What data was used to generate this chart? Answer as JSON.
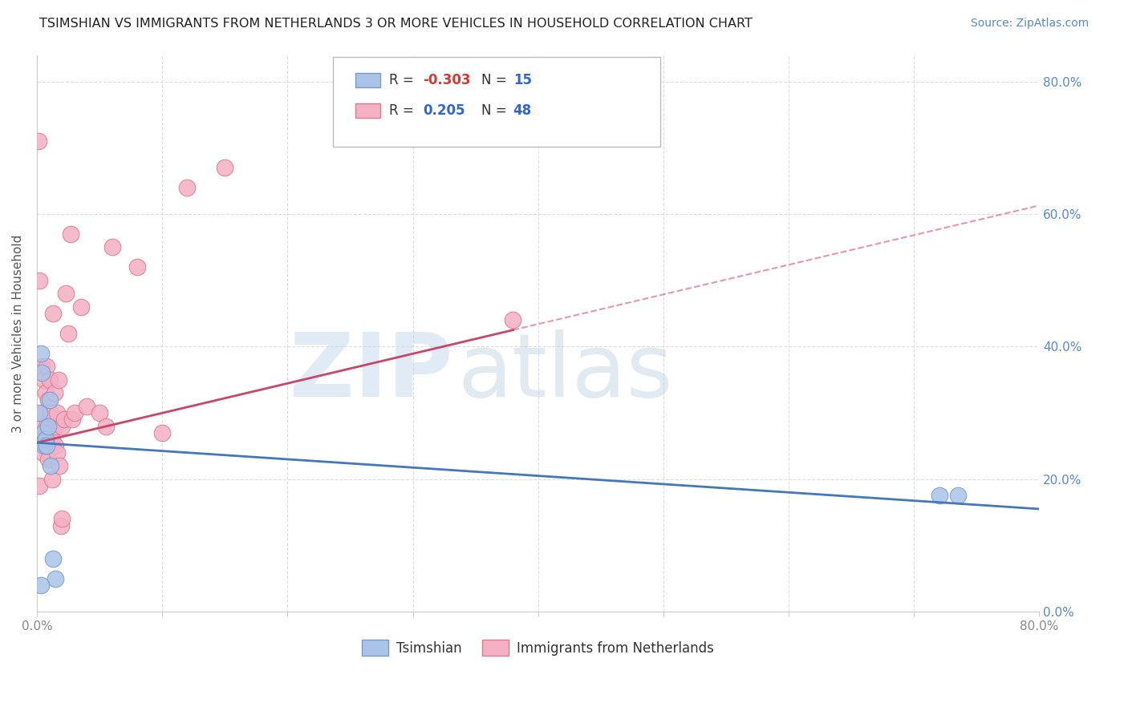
{
  "title": "TSIMSHIAN VS IMMIGRANTS FROM NETHERLANDS 3 OR MORE VEHICLES IN HOUSEHOLD CORRELATION CHART",
  "source": "Source: ZipAtlas.com",
  "ylabel": "3 or more Vehicles in Household",
  "xlim": [
    0.0,
    0.8
  ],
  "ylim": [
    0.0,
    0.84
  ],
  "xticks": [
    0.0,
    0.1,
    0.2,
    0.3,
    0.4,
    0.5,
    0.6,
    0.7,
    0.8
  ],
  "xticklabels": [
    "0.0%",
    "",
    "",
    "",
    "",
    "",
    "",
    "",
    "80.0%"
  ],
  "yticks_right": [
    0.0,
    0.2,
    0.4,
    0.6,
    0.8
  ],
  "yticklabels_right": [
    "0.0%",
    "20.0%",
    "40.0%",
    "60.0%",
    "80.0%"
  ],
  "grid_color": "#dddddd",
  "background_color": "#ffffff",
  "tsimshian_color": "#aac4e8",
  "tsimshian_edge_color": "#7799cc",
  "netherlands_color": "#f4b0c4",
  "netherlands_edge_color": "#e07890",
  "tsimshian_line_color": "#4477bb",
  "netherlands_line_color": "#cc4466",
  "tsimshian_R": -0.303,
  "tsimshian_N": 15,
  "netherlands_R": 0.205,
  "netherlands_N": 48,
  "legend_label_tsimshian": "Tsimshian",
  "legend_label_netherlands": "Immigrants from Netherlands",
  "watermark_zip": "ZIP",
  "watermark_atlas": "atlas",
  "tsimshian_x": [
    0.002,
    0.003,
    0.004,
    0.005,
    0.006,
    0.007,
    0.008,
    0.009,
    0.01,
    0.011,
    0.013,
    0.015,
    0.72,
    0.735,
    0.003
  ],
  "tsimshian_y": [
    0.3,
    0.39,
    0.36,
    0.27,
    0.25,
    0.26,
    0.25,
    0.28,
    0.32,
    0.22,
    0.08,
    0.05,
    0.175,
    0.175,
    0.04
  ],
  "netherlands_x": [
    0.001,
    0.002,
    0.002,
    0.003,
    0.004,
    0.004,
    0.005,
    0.005,
    0.006,
    0.006,
    0.007,
    0.007,
    0.008,
    0.008,
    0.009,
    0.009,
    0.01,
    0.01,
    0.011,
    0.012,
    0.012,
    0.013,
    0.014,
    0.015,
    0.015,
    0.016,
    0.016,
    0.017,
    0.018,
    0.019,
    0.02,
    0.02,
    0.022,
    0.023,
    0.025,
    0.027,
    0.028,
    0.03,
    0.035,
    0.04,
    0.05,
    0.055,
    0.06,
    0.08,
    0.1,
    0.12,
    0.15,
    0.38
  ],
  "netherlands_y": [
    0.71,
    0.19,
    0.5,
    0.26,
    0.28,
    0.37,
    0.24,
    0.3,
    0.26,
    0.35,
    0.25,
    0.33,
    0.28,
    0.37,
    0.32,
    0.23,
    0.27,
    0.35,
    0.3,
    0.26,
    0.2,
    0.45,
    0.33,
    0.25,
    0.28,
    0.3,
    0.24,
    0.35,
    0.22,
    0.13,
    0.14,
    0.28,
    0.29,
    0.48,
    0.42,
    0.57,
    0.29,
    0.3,
    0.46,
    0.31,
    0.3,
    0.28,
    0.55,
    0.52,
    0.27,
    0.64,
    0.67,
    0.44
  ],
  "neth_line_x_start": 0.0,
  "neth_line_x_solid_end": 0.38,
  "neth_line_x_end": 0.8,
  "neth_line_y_at_0": 0.255,
  "neth_line_y_at_038": 0.425,
  "neth_line_y_at_080": 0.64,
  "tsim_line_y_at_0": 0.255,
  "tsim_line_y_at_080": 0.155
}
